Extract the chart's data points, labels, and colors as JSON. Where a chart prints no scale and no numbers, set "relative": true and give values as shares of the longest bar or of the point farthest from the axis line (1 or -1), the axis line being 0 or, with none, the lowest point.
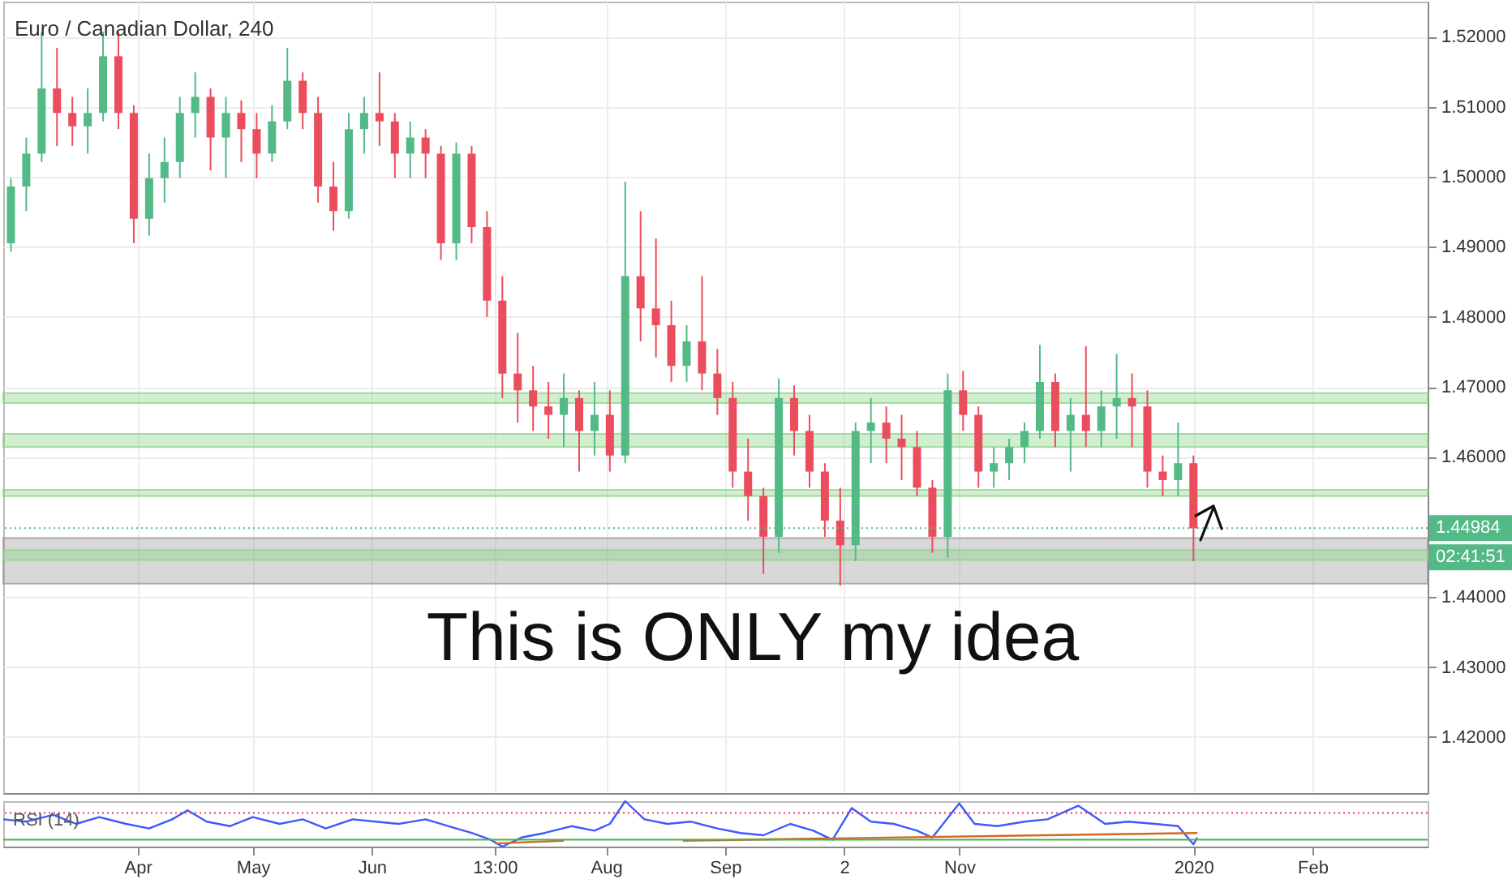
{
  "chart_data": [
    {
      "type": "candlestick",
      "title": "Euro / Canadian Dollar, 240",
      "tick_labels": "y",
      "grid": true,
      "xlim": [
        "2019-02-25",
        "2020-03-02"
      ],
      "xticks": [
        {
          "value": "2019-04-01",
          "label": null
        },
        {
          "value": "2019-05-01",
          "label": null
        },
        {
          "value": "2019-06-01",
          "label": null
        },
        {
          "value": "2019-07-03",
          "label": null
        },
        {
          "value": "2019-08-01",
          "label": null
        },
        {
          "value": "2019-09-01",
          "label": null
        },
        {
          "value": "2019-10-02",
          "label": null
        },
        {
          "value": "2019-11-01",
          "label": null
        },
        {
          "value": "2020-01-01",
          "label": null
        },
        {
          "value": "2020-02-01",
          "label": null
        }
      ],
      "ylim": [
        1.412,
        1.525
      ],
      "yticks": [
        {
          "value": 1.42,
          "label": "1.42000"
        },
        {
          "value": 1.43,
          "label": "1.43000"
        },
        {
          "value": 1.44,
          "label": "1.44000"
        },
        {
          "value": 1.46,
          "label": "1.46000"
        },
        {
          "value": 1.47,
          "label": "1.47000"
        },
        {
          "value": 1.48,
          "label": "1.48000"
        },
        {
          "value": 1.49,
          "label": "1.49000"
        },
        {
          "value": 1.5,
          "label": "1.50000"
        },
        {
          "value": 1.51,
          "label": "1.51000"
        },
        {
          "value": 1.52,
          "label": "1.52000"
        }
      ],
      "x": [
        "2019-02-27",
        "2019-03-03",
        "2019-03-07",
        "2019-03-11",
        "2019-03-15",
        "2019-03-19",
        "2019-03-23",
        "2019-03-27",
        "2019-03-31",
        "2019-04-04",
        "2019-04-08",
        "2019-04-12",
        "2019-04-16",
        "2019-04-20",
        "2019-04-24",
        "2019-04-28",
        "2019-05-02",
        "2019-05-06",
        "2019-05-10",
        "2019-05-14",
        "2019-05-18",
        "2019-05-22",
        "2019-05-26",
        "2019-05-30",
        "2019-06-03",
        "2019-06-07",
        "2019-06-11",
        "2019-06-15",
        "2019-06-19",
        "2019-06-23",
        "2019-06-27",
        "2019-07-01",
        "2019-07-05",
        "2019-07-09",
        "2019-07-13",
        "2019-07-17",
        "2019-07-21",
        "2019-07-25",
        "2019-07-29",
        "2019-08-02",
        "2019-08-06",
        "2019-08-10",
        "2019-08-14",
        "2019-08-18",
        "2019-08-22",
        "2019-08-26",
        "2019-08-30",
        "2019-09-03",
        "2019-09-07",
        "2019-09-11",
        "2019-09-15",
        "2019-09-19",
        "2019-09-23",
        "2019-09-27",
        "2019-10-01",
        "2019-10-05",
        "2019-10-09",
        "2019-10-13",
        "2019-10-17",
        "2019-10-21",
        "2019-10-25",
        "2019-10-29",
        "2019-11-02",
        "2019-11-06",
        "2019-11-10",
        "2019-11-14",
        "2019-11-18",
        "2019-11-22",
        "2019-11-26",
        "2019-11-30",
        "2019-12-04",
        "2019-12-08",
        "2019-12-12",
        "2019-12-16",
        "2019-12-20",
        "2019-12-24",
        "2019-12-28",
        "2020-01-01"
      ],
      "ohlc": [
        [
          1.4905,
          1.4998,
          1.4893,
          1.4986
        ],
        [
          1.4986,
          1.5056,
          1.4951,
          1.5033
        ],
        [
          1.5033,
          1.5207,
          1.5021,
          1.5126
        ],
        [
          1.5126,
          1.5184,
          1.5044,
          1.5091
        ],
        [
          1.5091,
          1.5114,
          1.5044,
          1.5072
        ],
        [
          1.5072,
          1.5126,
          1.5033,
          1.5091
        ],
        [
          1.5091,
          1.5207,
          1.5079,
          1.5172
        ],
        [
          1.5172,
          1.5207,
          1.5068,
          1.5091
        ],
        [
          1.5091,
          1.5102,
          1.4905,
          1.494
        ],
        [
          1.494,
          1.5033,
          1.4916,
          1.4998
        ],
        [
          1.4998,
          1.5056,
          1.4963,
          1.5021
        ],
        [
          1.5021,
          1.5114,
          1.4998,
          1.5091
        ],
        [
          1.5091,
          1.5149,
          1.5056,
          1.5114
        ],
        [
          1.5114,
          1.5126,
          1.5009,
          1.5056
        ],
        [
          1.5056,
          1.5114,
          1.4998,
          1.5091
        ],
        [
          1.5091,
          1.5109,
          1.5021,
          1.5068
        ],
        [
          1.5068,
          1.5091,
          1.4998,
          1.5033
        ],
        [
          1.5033,
          1.5102,
          1.5021,
          1.5079
        ],
        [
          1.5079,
          1.5184,
          1.5068,
          1.5137
        ],
        [
          1.5137,
          1.5149,
          1.5068,
          1.5091
        ],
        [
          1.5091,
          1.5114,
          1.4963,
          1.4986
        ],
        [
          1.4986,
          1.5021,
          1.4923,
          1.4951
        ],
        [
          1.4951,
          1.5091,
          1.494,
          1.5068
        ],
        [
          1.5068,
          1.5114,
          1.5033,
          1.5091
        ],
        [
          1.5091,
          1.5149,
          1.5044,
          1.5079
        ],
        [
          1.5079,
          1.5091,
          1.4998,
          1.5033
        ],
        [
          1.5033,
          1.5079,
          1.4998,
          1.5056
        ],
        [
          1.5056,
          1.5068,
          1.4998,
          1.5033
        ],
        [
          1.5033,
          1.5044,
          1.4881,
          1.4905
        ],
        [
          1.4905,
          1.5049,
          1.4881,
          1.5033
        ],
        [
          1.5033,
          1.5044,
          1.4905,
          1.4928
        ],
        [
          1.4928,
          1.4951,
          1.48,
          1.4823
        ],
        [
          1.4823,
          1.4858,
          1.4684,
          1.4719
        ],
        [
          1.4719,
          1.4777,
          1.4649,
          1.4695
        ],
        [
          1.4695,
          1.473,
          1.4637,
          1.4672
        ],
        [
          1.4672,
          1.4707,
          1.4626,
          1.466
        ],
        [
          1.466,
          1.4719,
          1.4614,
          1.4684
        ],
        [
          1.4684,
          1.4695,
          1.4579,
          1.4637
        ],
        [
          1.4637,
          1.4707,
          1.4602,
          1.466
        ],
        [
          1.466,
          1.4695,
          1.4579,
          1.4602
        ],
        [
          1.4602,
          1.4993,
          1.4591,
          1.4858
        ],
        [
          1.4858,
          1.4951,
          1.4765,
          1.4812
        ],
        [
          1.4812,
          1.4912,
          1.4742,
          1.4788
        ],
        [
          1.4788,
          1.4823,
          1.4707,
          1.473
        ],
        [
          1.473,
          1.4788,
          1.4707,
          1.4765
        ],
        [
          1.4765,
          1.4858,
          1.4695,
          1.4719
        ],
        [
          1.4719,
          1.4754,
          1.466,
          1.4684
        ],
        [
          1.4684,
          1.4707,
          1.4556,
          1.4579
        ],
        [
          1.4579,
          1.4626,
          1.4509,
          1.4544
        ],
        [
          1.4544,
          1.4556,
          1.4433,
          1.4486
        ],
        [
          1.4486,
          1.4712,
          1.4463,
          1.4684
        ],
        [
          1.4684,
          1.4702,
          1.4602,
          1.4637
        ],
        [
          1.4637,
          1.466,
          1.4556,
          1.4579
        ],
        [
          1.4579,
          1.4591,
          1.4486,
          1.4509
        ],
        [
          1.4509,
          1.4556,
          1.4416,
          1.4474
        ],
        [
          1.4474,
          1.4649,
          1.4451,
          1.4637
        ],
        [
          1.4637,
          1.4684,
          1.4591,
          1.4649
        ],
        [
          1.4649,
          1.4672,
          1.4591,
          1.4626
        ],
        [
          1.4626,
          1.466,
          1.4567,
          1.4614
        ],
        [
          1.4614,
          1.4637,
          1.4544,
          1.4556
        ],
        [
          1.4556,
          1.4567,
          1.4463,
          1.4486
        ],
        [
          1.4486,
          1.4719,
          1.4456,
          1.4695
        ],
        [
          1.4695,
          1.4723,
          1.4637,
          1.466
        ],
        [
          1.466,
          1.4672,
          1.4556,
          1.4579
        ],
        [
          1.4579,
          1.4614,
          1.4556,
          1.4591
        ],
        [
          1.4591,
          1.4626,
          1.4567,
          1.4614
        ],
        [
          1.4614,
          1.4649,
          1.4591,
          1.4637
        ],
        [
          1.4637,
          1.476,
          1.4626,
          1.4707
        ],
        [
          1.4707,
          1.4719,
          1.4614,
          1.4637
        ],
        [
          1.4637,
          1.4684,
          1.4579,
          1.466
        ],
        [
          1.466,
          1.4758,
          1.4614,
          1.4637
        ],
        [
          1.4637,
          1.4695,
          1.4614,
          1.4672
        ],
        [
          1.4672,
          1.4747,
          1.4626,
          1.4684
        ],
        [
          1.4684,
          1.4719,
          1.4614,
          1.4672
        ],
        [
          1.4672,
          1.4695,
          1.4556,
          1.4579
        ],
        [
          1.4579,
          1.4602,
          1.4544,
          1.4567
        ],
        [
          1.4567,
          1.4649,
          1.4544,
          1.4591
        ],
        [
          1.4591,
          1.4602,
          1.4451,
          1.4498
        ]
      ],
      "colors": [
        "#53b987",
        "#53b987",
        "#53b987",
        "#eb4d5c",
        "#eb4d5c",
        "#53b987",
        "#53b987",
        "#eb4d5c",
        "#eb4d5c",
        "#53b987",
        "#53b987",
        "#53b987",
        "#53b987",
        "#eb4d5c",
        "#53b987",
        "#eb4d5c",
        "#eb4d5c",
        "#53b987",
        "#53b987",
        "#eb4d5c",
        "#eb4d5c",
        "#eb4d5c",
        "#53b987",
        "#53b987",
        "#eb4d5c",
        "#eb4d5c",
        "#53b987",
        "#eb4d5c",
        "#eb4d5c",
        "#53b987",
        "#eb4d5c",
        "#eb4d5c",
        "#eb4d5c",
        "#eb4d5c",
        "#eb4d5c",
        "#eb4d5c",
        "#53b987",
        "#eb4d5c",
        "#53b987",
        "#eb4d5c",
        "#53b987",
        "#eb4d5c",
        "#eb4d5c",
        "#eb4d5c",
        "#53b987",
        "#eb4d5c",
        "#eb4d5c",
        "#eb4d5c",
        "#eb4d5c",
        "#eb4d5c",
        "#53b987",
        "#eb4d5c",
        "#eb4d5c",
        "#eb4d5c",
        "#eb4d5c",
        "#53b987",
        "#53b987",
        "#eb4d5c",
        "#eb4d5c",
        "#eb4d5c",
        "#eb4d5c",
        "#53b987",
        "#eb4d5c",
        "#eb4d5c",
        "#53b987",
        "#53b987",
        "#53b987",
        "#53b987",
        "#eb4d5c",
        "#53b987",
        "#eb4d5c",
        "#53b987",
        "#53b987",
        "#eb4d5c",
        "#eb4d5c",
        "#eb4d5c",
        "#53b987",
        "#eb4d5c"
      ],
      "bands": [
        {
          "axis": "y",
          "from": 1.4419,
          "to": 1.4484,
          "color": "#9e9e9e"
        },
        {
          "axis": "y",
          "from": 1.4677,
          "to": 1.4691,
          "color": "#8fd48a"
        },
        {
          "axis": "y",
          "from": 1.4614,
          "to": 1.4633,
          "color": "#8fd48a"
        },
        {
          "axis": "y",
          "from": 1.4544,
          "to": 1.4553,
          "color": "#8fd48a"
        },
        {
          "axis": "y",
          "from": 1.4453,
          "to": 1.4467,
          "color": "#8fd48a"
        }
      ],
      "ref_lines": [
        {
          "axis": "y",
          "value": 1.44984,
          "label": "1.44984",
          "color": "#53b987",
          "line_style": "dotted"
        }
      ],
      "annotations": [
        "This is ONLY my idea",
        "02:41:51"
      ]
    },
    {
      "type": "line",
      "title": "RSI (14)",
      "relative": true,
      "tick_labels": "x",
      "xlim": [
        "2019-02-25",
        "2020-03-02"
      ],
      "xticks": [
        {
          "value": "2019-04-01",
          "label": "Apr"
        },
        {
          "value": "2019-05-01",
          "label": "May"
        },
        {
          "value": "2019-06-01",
          "label": "Jun"
        },
        {
          "value": "2019-07-03",
          "label": "13:00"
        },
        {
          "value": "2019-08-01",
          "label": "Aug"
        },
        {
          "value": "2019-09-01",
          "label": "Sep"
        },
        {
          "value": "2019-10-02",
          "label": "2"
        },
        {
          "value": "2019-11-01",
          "label": "Nov"
        },
        {
          "value": "2020-01-01",
          "label": "2020"
        },
        {
          "value": "2020-02-01",
          "label": "Feb"
        }
      ],
      "series": [
        {
          "color": "#3d5afe",
          "x": [
            "2019-02-25",
            "2019-03-03",
            "2019-03-10",
            "2019-03-16",
            "2019-03-22",
            "2019-03-29",
            "2019-04-04",
            "2019-04-10",
            "2019-04-14",
            "2019-04-19",
            "2019-04-25",
            "2019-05-01",
            "2019-05-08",
            "2019-05-14",
            "2019-05-20",
            "2019-05-27",
            "2019-06-02",
            "2019-06-08",
            "2019-06-15",
            "2019-06-21",
            "2019-06-27",
            "2019-07-02",
            "2019-07-05",
            "2019-07-10",
            "2019-07-16",
            "2019-07-23",
            "2019-07-29",
            "2019-08-02",
            "2019-08-06",
            "2019-08-11",
            "2019-08-17",
            "2019-08-23",
            "2019-08-30",
            "2019-09-05",
            "2019-09-11",
            "2019-09-18",
            "2019-09-24",
            "2019-09-29",
            "2019-10-04",
            "2019-10-09",
            "2019-10-15",
            "2019-10-21",
            "2019-10-25",
            "2019-11-01",
            "2019-11-05",
            "2019-11-11",
            "2019-11-18",
            "2019-11-24",
            "2019-12-02",
            "2019-12-09",
            "2019-12-15",
            "2019-12-22",
            "2019-12-28",
            "2020-01-01",
            "2020-01-02"
          ],
          "values": [
            0.6,
            0.55,
            0.7,
            0.5,
            0.65,
            0.5,
            0.4,
            0.6,
            0.8,
            0.55,
            0.45,
            0.65,
            0.5,
            0.6,
            0.4,
            0.6,
            0.55,
            0.5,
            0.6,
            0.45,
            0.3,
            0.15,
            0,
            0.2,
            0.3,
            0.45,
            0.35,
            0.5,
            1,
            0.6,
            0.5,
            0.55,
            0.4,
            0.3,
            0.25,
            0.5,
            0.35,
            0.15,
            0.85,
            0.55,
            0.5,
            0.35,
            0.2,
            0.95,
            0.5,
            0.45,
            0.55,
            0.6,
            0.9,
            0.5,
            0.55,
            0.5,
            0.45,
            0.05,
            0.2
          ]
        },
        {
          "type": "line",
          "color": "#d2691e",
          "x": [
            "2019-07-03",
            "2019-07-21"
          ],
          "values": [
            0.07,
            0.13
          ]
        },
        {
          "type": "line",
          "color": "#d2691e",
          "x": [
            "2019-08-21",
            "2020-01-02"
          ],
          "values": [
            0.13,
            0.3
          ]
        }
      ],
      "ref_lines": [
        {
          "axis": "y",
          "value": 0.74,
          "color": "#f23645",
          "line_style": "dotted"
        },
        {
          "axis": "y",
          "value": 0.15,
          "color": "#4caf50",
          "line_style": "solid"
        }
      ]
    }
  ]
}
